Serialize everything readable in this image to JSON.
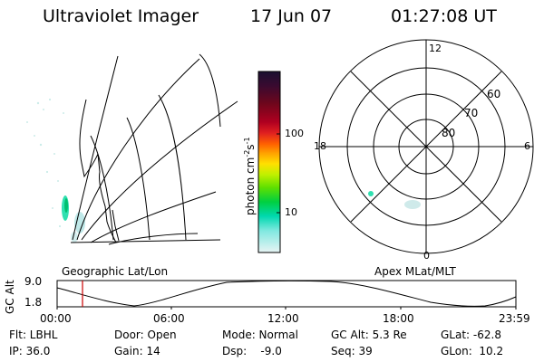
{
  "header": {
    "instrument": "Ultraviolet Imager",
    "date": "17 Jun 07",
    "time": "01:27:08 UT"
  },
  "geographic_panel": {
    "caption": "Geographic Lat/Lon"
  },
  "colorbar": {
    "unit_label": "photon cm",
    "unit_exp1": "-2",
    "unit_s": "s",
    "unit_exp2": "-1",
    "ticks": [
      "100",
      "10"
    ]
  },
  "polar_panel": {
    "caption": "Apex MLat/MLT",
    "mlt_labels": {
      "top": "12",
      "right": "6",
      "bottom": "0",
      "left": "18"
    },
    "lat_labels": [
      "60",
      "70",
      "80"
    ]
  },
  "altitude_plot": {
    "ylabel": "GC Alt",
    "y_ticks": [
      "9.0",
      "1.8"
    ],
    "x_ticks": [
      "00:00",
      "06:00",
      "12:00",
      "18:00",
      "23:59"
    ]
  },
  "status": {
    "row1": [
      {
        "label": "Flt: LBHL"
      },
      {
        "label": "Door: Open"
      },
      {
        "label": "Mode: Normal"
      },
      {
        "label": "GC Alt: 5.3 Re"
      },
      {
        "label": "GLat: -62.8"
      }
    ],
    "row2": [
      {
        "label": "IP: 36.0"
      },
      {
        "label": "Gain: 14"
      },
      {
        "label": "Dsp:    -9.0"
      },
      {
        "label": "Seq: 39"
      },
      {
        "label": "GLon:  10.2"
      }
    ]
  },
  "colors": {
    "marker": "#cc0000",
    "aurora": "#30e0b0",
    "colorbar": [
      "#1a1030",
      "#3a0a30",
      "#70061c",
      "#b00020",
      "#e02020",
      "#ff6000",
      "#ffa000",
      "#ffe000",
      "#c0f000",
      "#60e000",
      "#00d040",
      "#00d8b0",
      "#80e8e0",
      "#e8f4f4"
    ]
  }
}
